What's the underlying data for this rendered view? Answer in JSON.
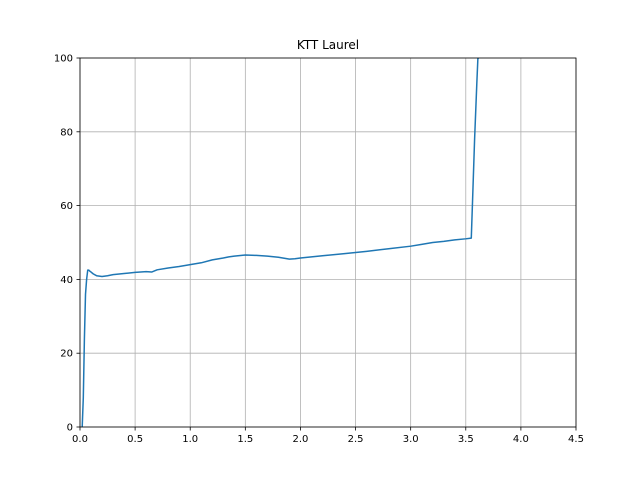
{
  "chart_data": {
    "type": "line",
    "title": "KTT Laurel",
    "xlabel": "",
    "ylabel": "",
    "xlim": [
      0,
      4.5
    ],
    "ylim": [
      0,
      100
    ],
    "xticks": [
      "0.0",
      "0.5",
      "1.0",
      "1.5",
      "2.0",
      "2.5",
      "3.0",
      "3.5",
      "4.0",
      "4.5"
    ],
    "yticks": [
      "0",
      "20",
      "40",
      "60",
      "80",
      "100"
    ],
    "grid": true,
    "line_color": "#1f77b4",
    "series": [
      {
        "x": [
          0.02,
          0.03,
          0.04,
          0.05,
          0.06,
          0.07,
          0.08,
          0.09,
          0.1,
          0.12,
          0.15,
          0.2,
          0.25,
          0.3,
          0.4,
          0.5,
          0.6,
          0.65,
          0.7,
          0.8,
          0.9,
          1.0,
          1.1,
          1.2,
          1.3,
          1.35,
          1.4,
          1.5,
          1.6,
          1.7,
          1.8,
          1.9,
          1.95,
          2.0,
          2.2,
          2.4,
          2.6,
          2.8,
          3.0,
          3.1,
          3.2,
          3.3,
          3.4,
          3.5,
          3.55,
          3.56,
          3.58,
          3.6,
          3.61,
          3.62
        ],
        "y": [
          0,
          8,
          24,
          36,
          40,
          42.5,
          42.5,
          42.2,
          42,
          41.5,
          41,
          40.8,
          41,
          41.3,
          41.6,
          41.9,
          42.1,
          42,
          42.6,
          43.1,
          43.5,
          44,
          44.5,
          45.3,
          45.8,
          46.1,
          46.3,
          46.6,
          46.5,
          46.3,
          46,
          45.5,
          45.6,
          45.8,
          46.4,
          47,
          47.6,
          48.3,
          49,
          49.5,
          50,
          50.3,
          50.7,
          51,
          51.2,
          60,
          78,
          93,
          100,
          100
        ]
      }
    ]
  }
}
